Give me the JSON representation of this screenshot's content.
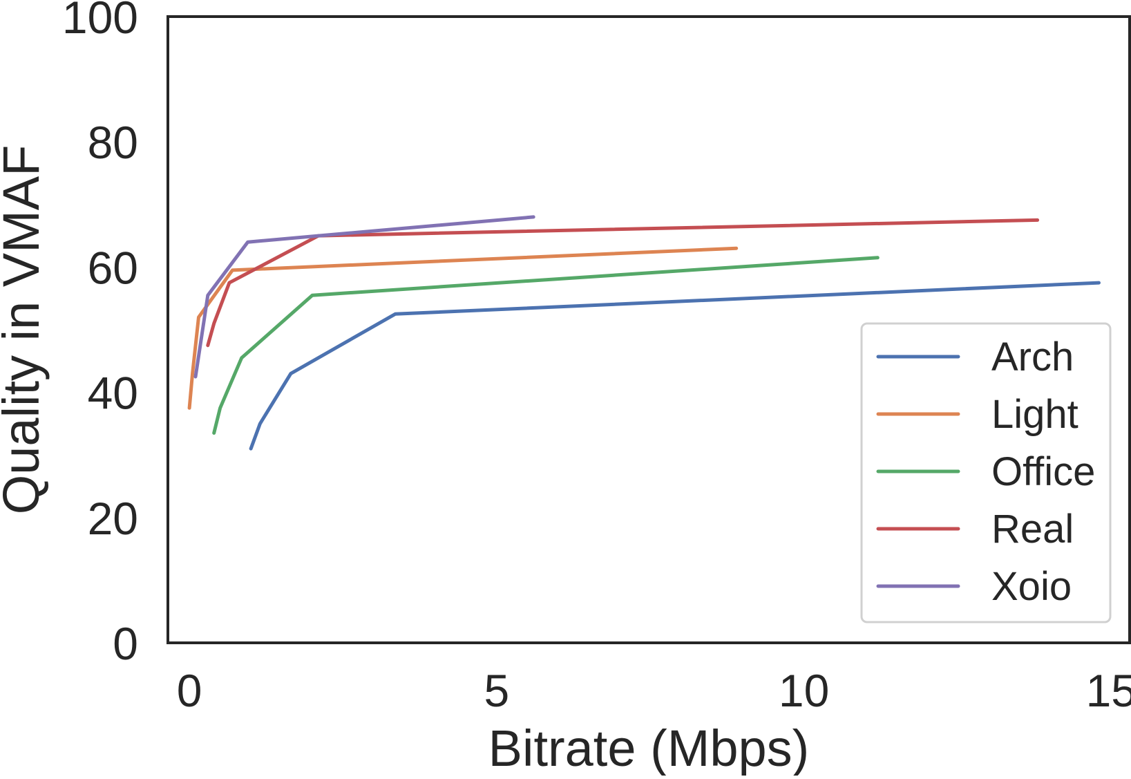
{
  "chart_data": {
    "type": "line",
    "title": "",
    "xlabel": "Bitrate (Mbps)",
    "ylabel": "Quality in VMAF",
    "xlim": [
      -0.35,
      15.3
    ],
    "ylim": [
      0,
      100
    ],
    "xticks": [
      0,
      5,
      10,
      15
    ],
    "yticks": [
      0,
      20,
      40,
      60,
      80,
      100
    ],
    "grid": false,
    "legend_position": "lower-right",
    "series": [
      {
        "name": "Arch",
        "color": "#4c72b0",
        "points": [
          [
            1.0,
            31
          ],
          [
            1.15,
            35
          ],
          [
            1.65,
            43
          ],
          [
            3.35,
            52.5
          ],
          [
            14.8,
            57.5
          ]
        ]
      },
      {
        "name": "Light",
        "color": "#dd8452",
        "points": [
          [
            0.0,
            37.5
          ],
          [
            0.05,
            43
          ],
          [
            0.15,
            52
          ],
          [
            0.7,
            59.5
          ],
          [
            8.9,
            63
          ]
        ]
      },
      {
        "name": "Office",
        "color": "#55a868",
        "points": [
          [
            0.4,
            33.5
          ],
          [
            0.5,
            37.5
          ],
          [
            0.85,
            45.5
          ],
          [
            2.0,
            55.5
          ],
          [
            11.2,
            61.5
          ]
        ]
      },
      {
        "name": "Real",
        "color": "#c44e52",
        "points": [
          [
            0.3,
            47.5
          ],
          [
            0.4,
            51
          ],
          [
            0.65,
            57.5
          ],
          [
            2.1,
            65
          ],
          [
            13.8,
            67.5
          ]
        ]
      },
      {
        "name": "Xoio",
        "color": "#8172b3",
        "points": [
          [
            0.1,
            42.5
          ],
          [
            0.3,
            55.5
          ],
          [
            0.95,
            64
          ],
          [
            2.1,
            65
          ],
          [
            5.6,
            68
          ]
        ]
      }
    ]
  }
}
